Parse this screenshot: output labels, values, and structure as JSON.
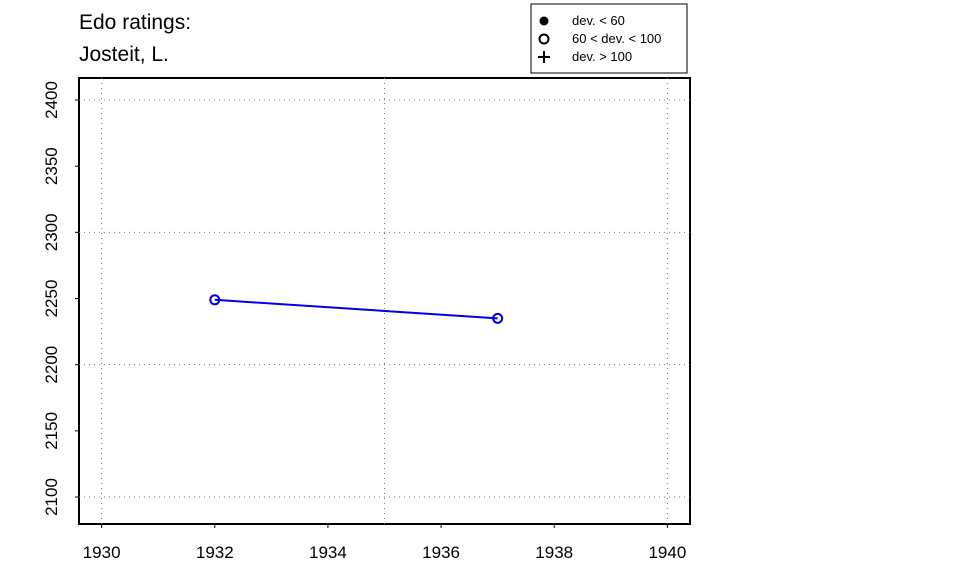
{
  "chart_data": {
    "type": "line",
    "title": "Edo ratings:",
    "subtitle": "Josteit, L.",
    "x": [
      1932,
      1937
    ],
    "series": [
      {
        "values": [
          2249,
          2235
        ],
        "color": "#0000ee",
        "marker": "open-circle"
      }
    ],
    "xlim": [
      1929.6,
      1940.4
    ],
    "ylim": [
      2079.6,
      2416.6
    ],
    "xticks": [
      1930,
      1932,
      1934,
      1936,
      1938,
      1940
    ],
    "yticks": [
      2100,
      2150,
      2200,
      2250,
      2300,
      2350,
      2400
    ],
    "grid": true,
    "xgrid": [
      1930,
      1935,
      1940
    ],
    "ygrid": [
      2100,
      2200,
      2300,
      2400
    ],
    "legend_position": "top-right",
    "legend": [
      {
        "symbol": "filled-circle",
        "label": "dev. < 60"
      },
      {
        "symbol": "open-circle",
        "label": "60 < dev. < 100"
      },
      {
        "symbol": "plus",
        "label": "dev. > 100"
      }
    ]
  }
}
